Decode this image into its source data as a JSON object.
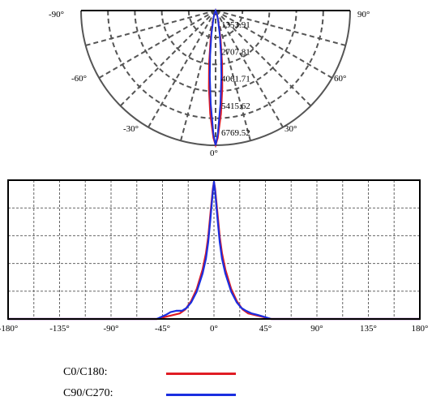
{
  "chart_data": [
    {
      "type": "polar",
      "title": "",
      "angle_labels": [
        {
          "angle": -90,
          "label": "-90°"
        },
        {
          "angle": -60,
          "label": "-60°"
        },
        {
          "angle": -30,
          "label": "-30°"
        },
        {
          "angle": 0,
          "label": "0°"
        },
        {
          "angle": 30,
          "label": "30°"
        },
        {
          "angle": 60,
          "label": "60°"
        },
        {
          "angle": 90,
          "label": "90°"
        }
      ],
      "radial_ticks": [
        {
          "value": 1353.91,
          "label": "1353.91"
        },
        {
          "value": 2707.81,
          "label": "2707.81"
        },
        {
          "value": 4061.71,
          "label": "4061.71"
        },
        {
          "value": 5415.62,
          "label": "5415.62"
        },
        {
          "value": 6769.52,
          "label": "6769.52"
        }
      ],
      "rmax": 6769.52,
      "grid": true,
      "series": [
        {
          "name": "C0/C180",
          "color": "#e01c24",
          "points": [
            [
              -20,
              150
            ],
            [
              -15,
              500
            ],
            [
              -10,
              1450
            ],
            [
              -7,
              2700
            ],
            [
              -5,
              3900
            ],
            [
              -3,
              5200
            ],
            [
              -1,
              6400
            ],
            [
              0,
              6769.52
            ],
            [
              1,
              6400
            ],
            [
              3,
              5200
            ],
            [
              5,
              3900
            ],
            [
              7,
              2700
            ],
            [
              10,
              1450
            ],
            [
              15,
              500
            ],
            [
              20,
              150
            ]
          ]
        },
        {
          "name": "C90/C270",
          "color": "#1a2ee0",
          "points": [
            [
              -20,
              200
            ],
            [
              -15,
              420
            ],
            [
              -10,
              1200
            ],
            [
              -7,
              2250
            ],
            [
              -5,
              3300
            ],
            [
              -3,
              4700
            ],
            [
              -1,
              6200
            ],
            [
              0,
              6769.52
            ],
            [
              1,
              6200
            ],
            [
              3,
              4700
            ],
            [
              5,
              3300
            ],
            [
              7,
              2250
            ],
            [
              10,
              1200
            ],
            [
              15,
              420
            ],
            [
              20,
              200
            ]
          ]
        }
      ]
    },
    {
      "type": "line",
      "title": "",
      "xlabel": "",
      "ylabel": "",
      "xlim": [
        -180,
        180
      ],
      "ylim": [
        0,
        1
      ],
      "x_ticks": [
        {
          "value": -180,
          "label": "-180°"
        },
        {
          "value": -135,
          "label": "-135°"
        },
        {
          "value": -90,
          "label": "-90°"
        },
        {
          "value": -45,
          "label": "-45°"
        },
        {
          "value": 0,
          "label": "0°"
        },
        {
          "value": 45,
          "label": "45°"
        },
        {
          "value": 90,
          "label": "90°"
        },
        {
          "value": 135,
          "label": "135°"
        },
        {
          "value": 180,
          "label": "180°"
        }
      ],
      "grid": true,
      "series": [
        {
          "name": "C0/C180",
          "color": "#e01c24",
          "x": [
            -180,
            -50,
            -40,
            -30,
            -25,
            -20,
            -15,
            -10,
            -7,
            -5,
            -3,
            -1,
            0,
            1,
            3,
            5,
            7,
            10,
            15,
            20,
            25,
            30,
            40,
            50,
            180
          ],
          "y": [
            0,
            0,
            0.02,
            0.04,
            0.07,
            0.13,
            0.22,
            0.36,
            0.48,
            0.6,
            0.78,
            0.95,
            1.0,
            0.95,
            0.78,
            0.6,
            0.48,
            0.36,
            0.22,
            0.13,
            0.07,
            0.04,
            0.02,
            0,
            0
          ]
        },
        {
          "name": "C90/C270",
          "color": "#1a2ee0",
          "x": [
            -180,
            -50,
            -42,
            -38,
            -33,
            -28,
            -24,
            -20,
            -15,
            -10,
            -7,
            -5,
            -3,
            -1,
            0,
            1,
            3,
            5,
            7,
            10,
            15,
            20,
            24,
            28,
            33,
            38,
            42,
            50,
            180
          ],
          "y": [
            0,
            0,
            0.03,
            0.05,
            0.06,
            0.06,
            0.08,
            0.12,
            0.2,
            0.33,
            0.44,
            0.56,
            0.74,
            0.93,
            1.0,
            0.93,
            0.74,
            0.56,
            0.44,
            0.33,
            0.2,
            0.12,
            0.08,
            0.06,
            0.04,
            0.03,
            0.02,
            0,
            0
          ]
        }
      ]
    }
  ],
  "legend": [
    {
      "label": "C0/C180:",
      "color": "#e01c24"
    },
    {
      "label": "C90/C270:",
      "color": "#1a2ee0"
    }
  ]
}
